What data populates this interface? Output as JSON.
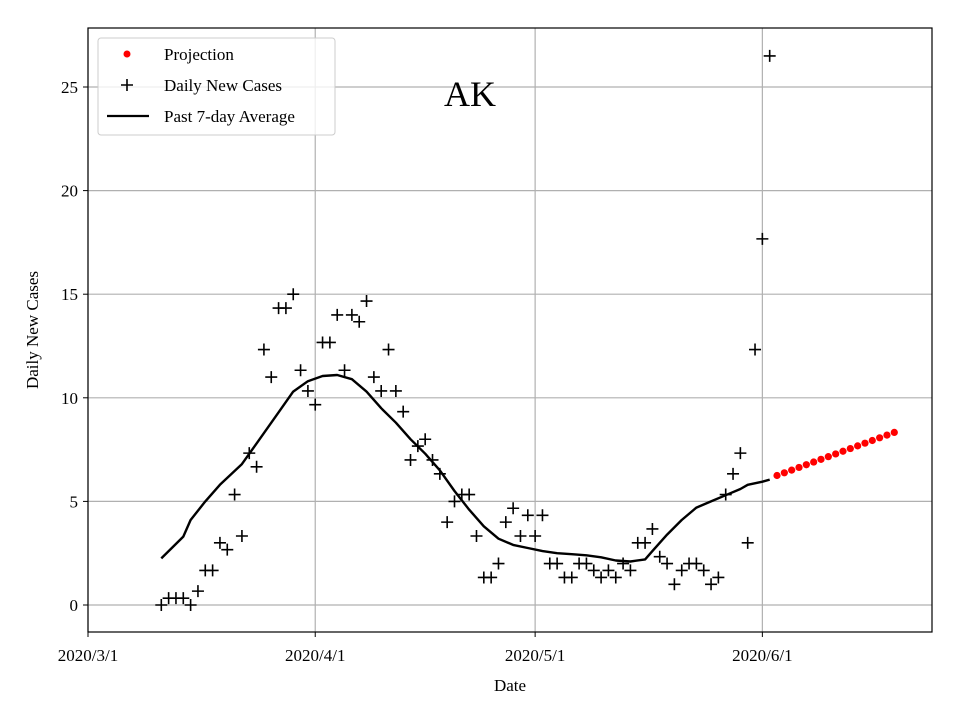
{
  "chart_data": {
    "type": "scatter",
    "title": "AK",
    "xlabel": "Date",
    "ylabel": "Daily New Cases",
    "x_unit": "days since 2020/3/1",
    "xlim": [
      0,
      115
    ],
    "ylim": [
      -1.33,
      27.9
    ],
    "grid": true,
    "legend_placement": "top-left",
    "x_ticks": [
      {
        "value": 0,
        "label": "2020/3/1"
      },
      {
        "value": 31,
        "label": "2020/4/1"
      },
      {
        "value": 61,
        "label": "2020/5/1"
      },
      {
        "value": 92,
        "label": "2020/6/1"
      }
    ],
    "y_ticks": [
      {
        "value": 0,
        "label": "0"
      },
      {
        "value": 5,
        "label": "5"
      },
      {
        "value": 10,
        "label": "10"
      },
      {
        "value": 15,
        "label": "15"
      },
      {
        "value": 20,
        "label": "20"
      },
      {
        "value": 25,
        "label": "25"
      }
    ],
    "legend": [
      {
        "label": "Projection",
        "style": "red-dot"
      },
      {
        "label": "Daily New Cases",
        "style": "black-plus"
      },
      {
        "label": "Past 7-day Average",
        "style": "black-line"
      }
    ],
    "series": [
      {
        "name": "Daily New Cases",
        "x_start": 10,
        "values": [
          0,
          0.33,
          0.33,
          0.33,
          0,
          0.67,
          1.67,
          1.67,
          3,
          2.67,
          5.33,
          3.33,
          7.33,
          6.67,
          12.33,
          11,
          14.33,
          14.33,
          15,
          11.33,
          10.33,
          9.67,
          12.67,
          12.67,
          14,
          11.33,
          14,
          13.67,
          14.67,
          11,
          10.33,
          12.33,
          10.33,
          9.33,
          7,
          7.67,
          8,
          7,
          6.33,
          4,
          5,
          5.33,
          5.33,
          3.33,
          1.33,
          1.33,
          2,
          4,
          4.67,
          3.33,
          4.33,
          3.33,
          4.33,
          2,
          2,
          1.33,
          1.33,
          2,
          2,
          1.67,
          1.33,
          1.67,
          1.33,
          2,
          1.67,
          3,
          3,
          3.67,
          2.33,
          2,
          1,
          1.67,
          2,
          2,
          1.67,
          1,
          1.33,
          5.33,
          6.33,
          7.33,
          3,
          12.33,
          17.67,
          26.5
        ]
      },
      {
        "name": "Past 7-day Average",
        "x": [
          10,
          13,
          14,
          16,
          18,
          21,
          23,
          26,
          28,
          30,
          32,
          34,
          36,
          38,
          40,
          42,
          44,
          46,
          48,
          50,
          52,
          54,
          56,
          58,
          60,
          62,
          64,
          66,
          68,
          70,
          72,
          74,
          76,
          77,
          79,
          81,
          83,
          85,
          87,
          89,
          90,
          92,
          93
        ],
        "values": [
          2.25,
          3.3,
          4.1,
          5.0,
          5.8,
          6.8,
          7.8,
          9.3,
          10.3,
          10.8,
          11.05,
          11.1,
          10.9,
          10.3,
          9.5,
          8.8,
          8.0,
          7.3,
          6.5,
          5.5,
          4.6,
          3.8,
          3.2,
          2.9,
          2.75,
          2.6,
          2.5,
          2.45,
          2.4,
          2.3,
          2.15,
          2.1,
          2.2,
          2.6,
          3.4,
          4.1,
          4.7,
          5.0,
          5.3,
          5.6,
          5.8,
          5.95,
          6.05
        ]
      },
      {
        "name": "Projection",
        "x_start": 94,
        "values": [
          6.25,
          6.38,
          6.51,
          6.64,
          6.77,
          6.9,
          7.03,
          7.16,
          7.29,
          7.42,
          7.55,
          7.68,
          7.81,
          7.94,
          8.07,
          8.2,
          8.33
        ]
      }
    ],
    "colors": {
      "projection": "#ff0000",
      "cases": "#000000",
      "average": "#000000",
      "grid": "#b0b0b0"
    }
  }
}
